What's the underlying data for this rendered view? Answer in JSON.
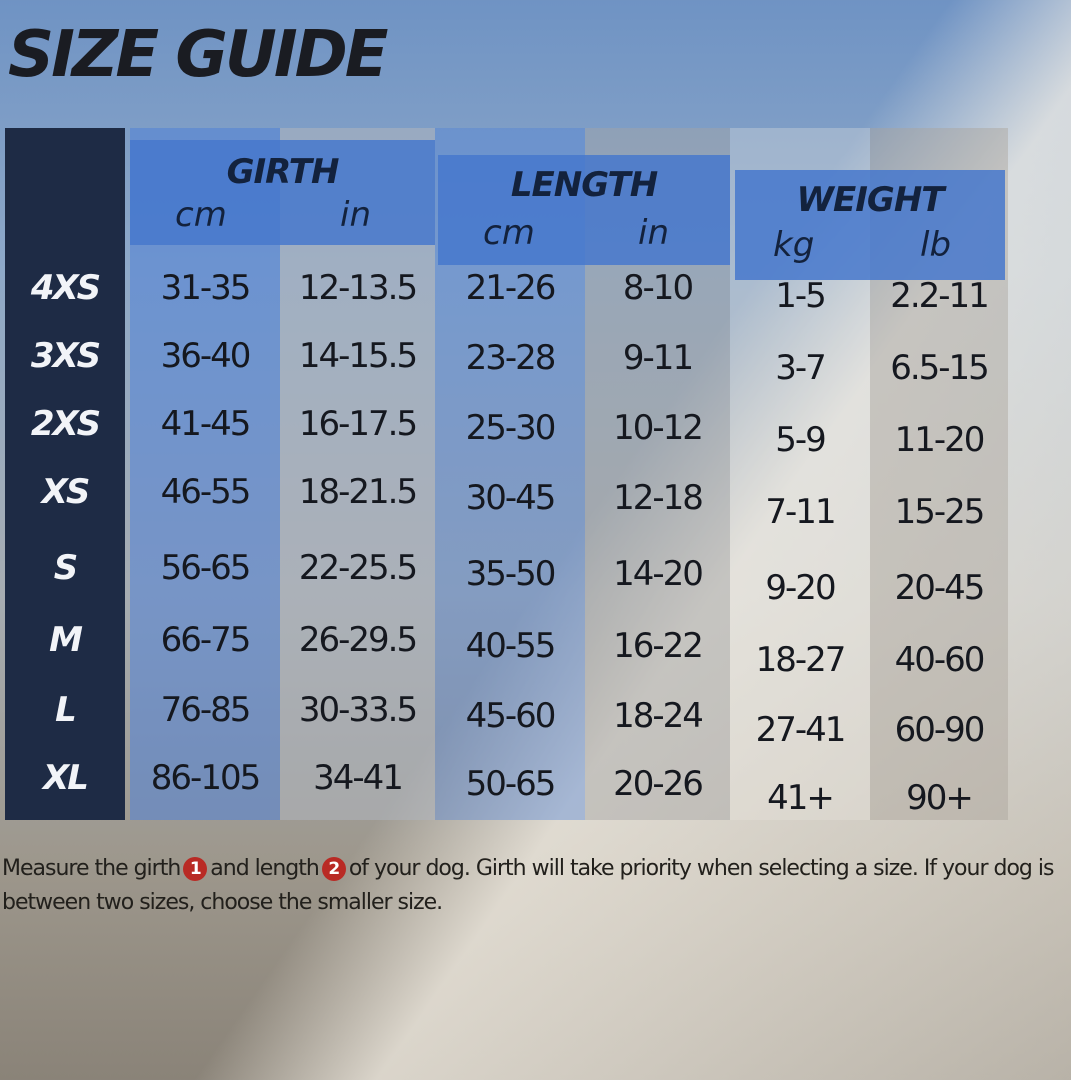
{
  "title": "SIZE GUIDE",
  "headers": {
    "groups": [
      "GIRTH",
      "LENGTH",
      "WEIGHT"
    ],
    "units": [
      "cm",
      "in",
      "cm",
      "in",
      "kg",
      "lb"
    ]
  },
  "rows": [
    {
      "size": "4XS",
      "values": [
        "31-35",
        "12-13.5",
        "21-26",
        "8-10",
        "1-5",
        "2.2-11"
      ]
    },
    {
      "size": "3XS",
      "values": [
        "36-40",
        "14-15.5",
        "23-28",
        "9-11",
        "3-7",
        "6.5-15"
      ]
    },
    {
      "size": "2XS",
      "values": [
        "41-45",
        "16-17.5",
        "25-30",
        "10-12",
        "5-9",
        "11-20"
      ]
    },
    {
      "size": "XS",
      "values": [
        "46-55",
        "18-21.5",
        "30-45",
        "12-18",
        "7-11",
        "15-25"
      ]
    },
    {
      "size": "S",
      "values": [
        "56-65",
        "22-25.5",
        "35-50",
        "14-20",
        "9-20",
        "20-45"
      ]
    },
    {
      "size": "M",
      "values": [
        "66-75",
        "26-29.5",
        "40-55",
        "16-22",
        "18-27",
        "40-60"
      ]
    },
    {
      "size": "L",
      "values": [
        "76-85",
        "30-33.5",
        "45-60",
        "18-24",
        "27-41",
        "60-90"
      ]
    },
    {
      "size": "XL",
      "values": [
        "86-105",
        "34-41",
        "50-65",
        "20-26",
        "41+",
        "90+"
      ]
    }
  ],
  "note": {
    "part1": "Measure the girth",
    "badge1": "1",
    "part2": "and length",
    "badge2": "2",
    "part3": "of your dog. Girth will take priority when selecting a size. If your dog is between two sizes, choose the smaller size."
  },
  "colors": {
    "header_blue": "#4678cd",
    "size_column": "#1e2b45",
    "badge_red": "#b92a24"
  }
}
